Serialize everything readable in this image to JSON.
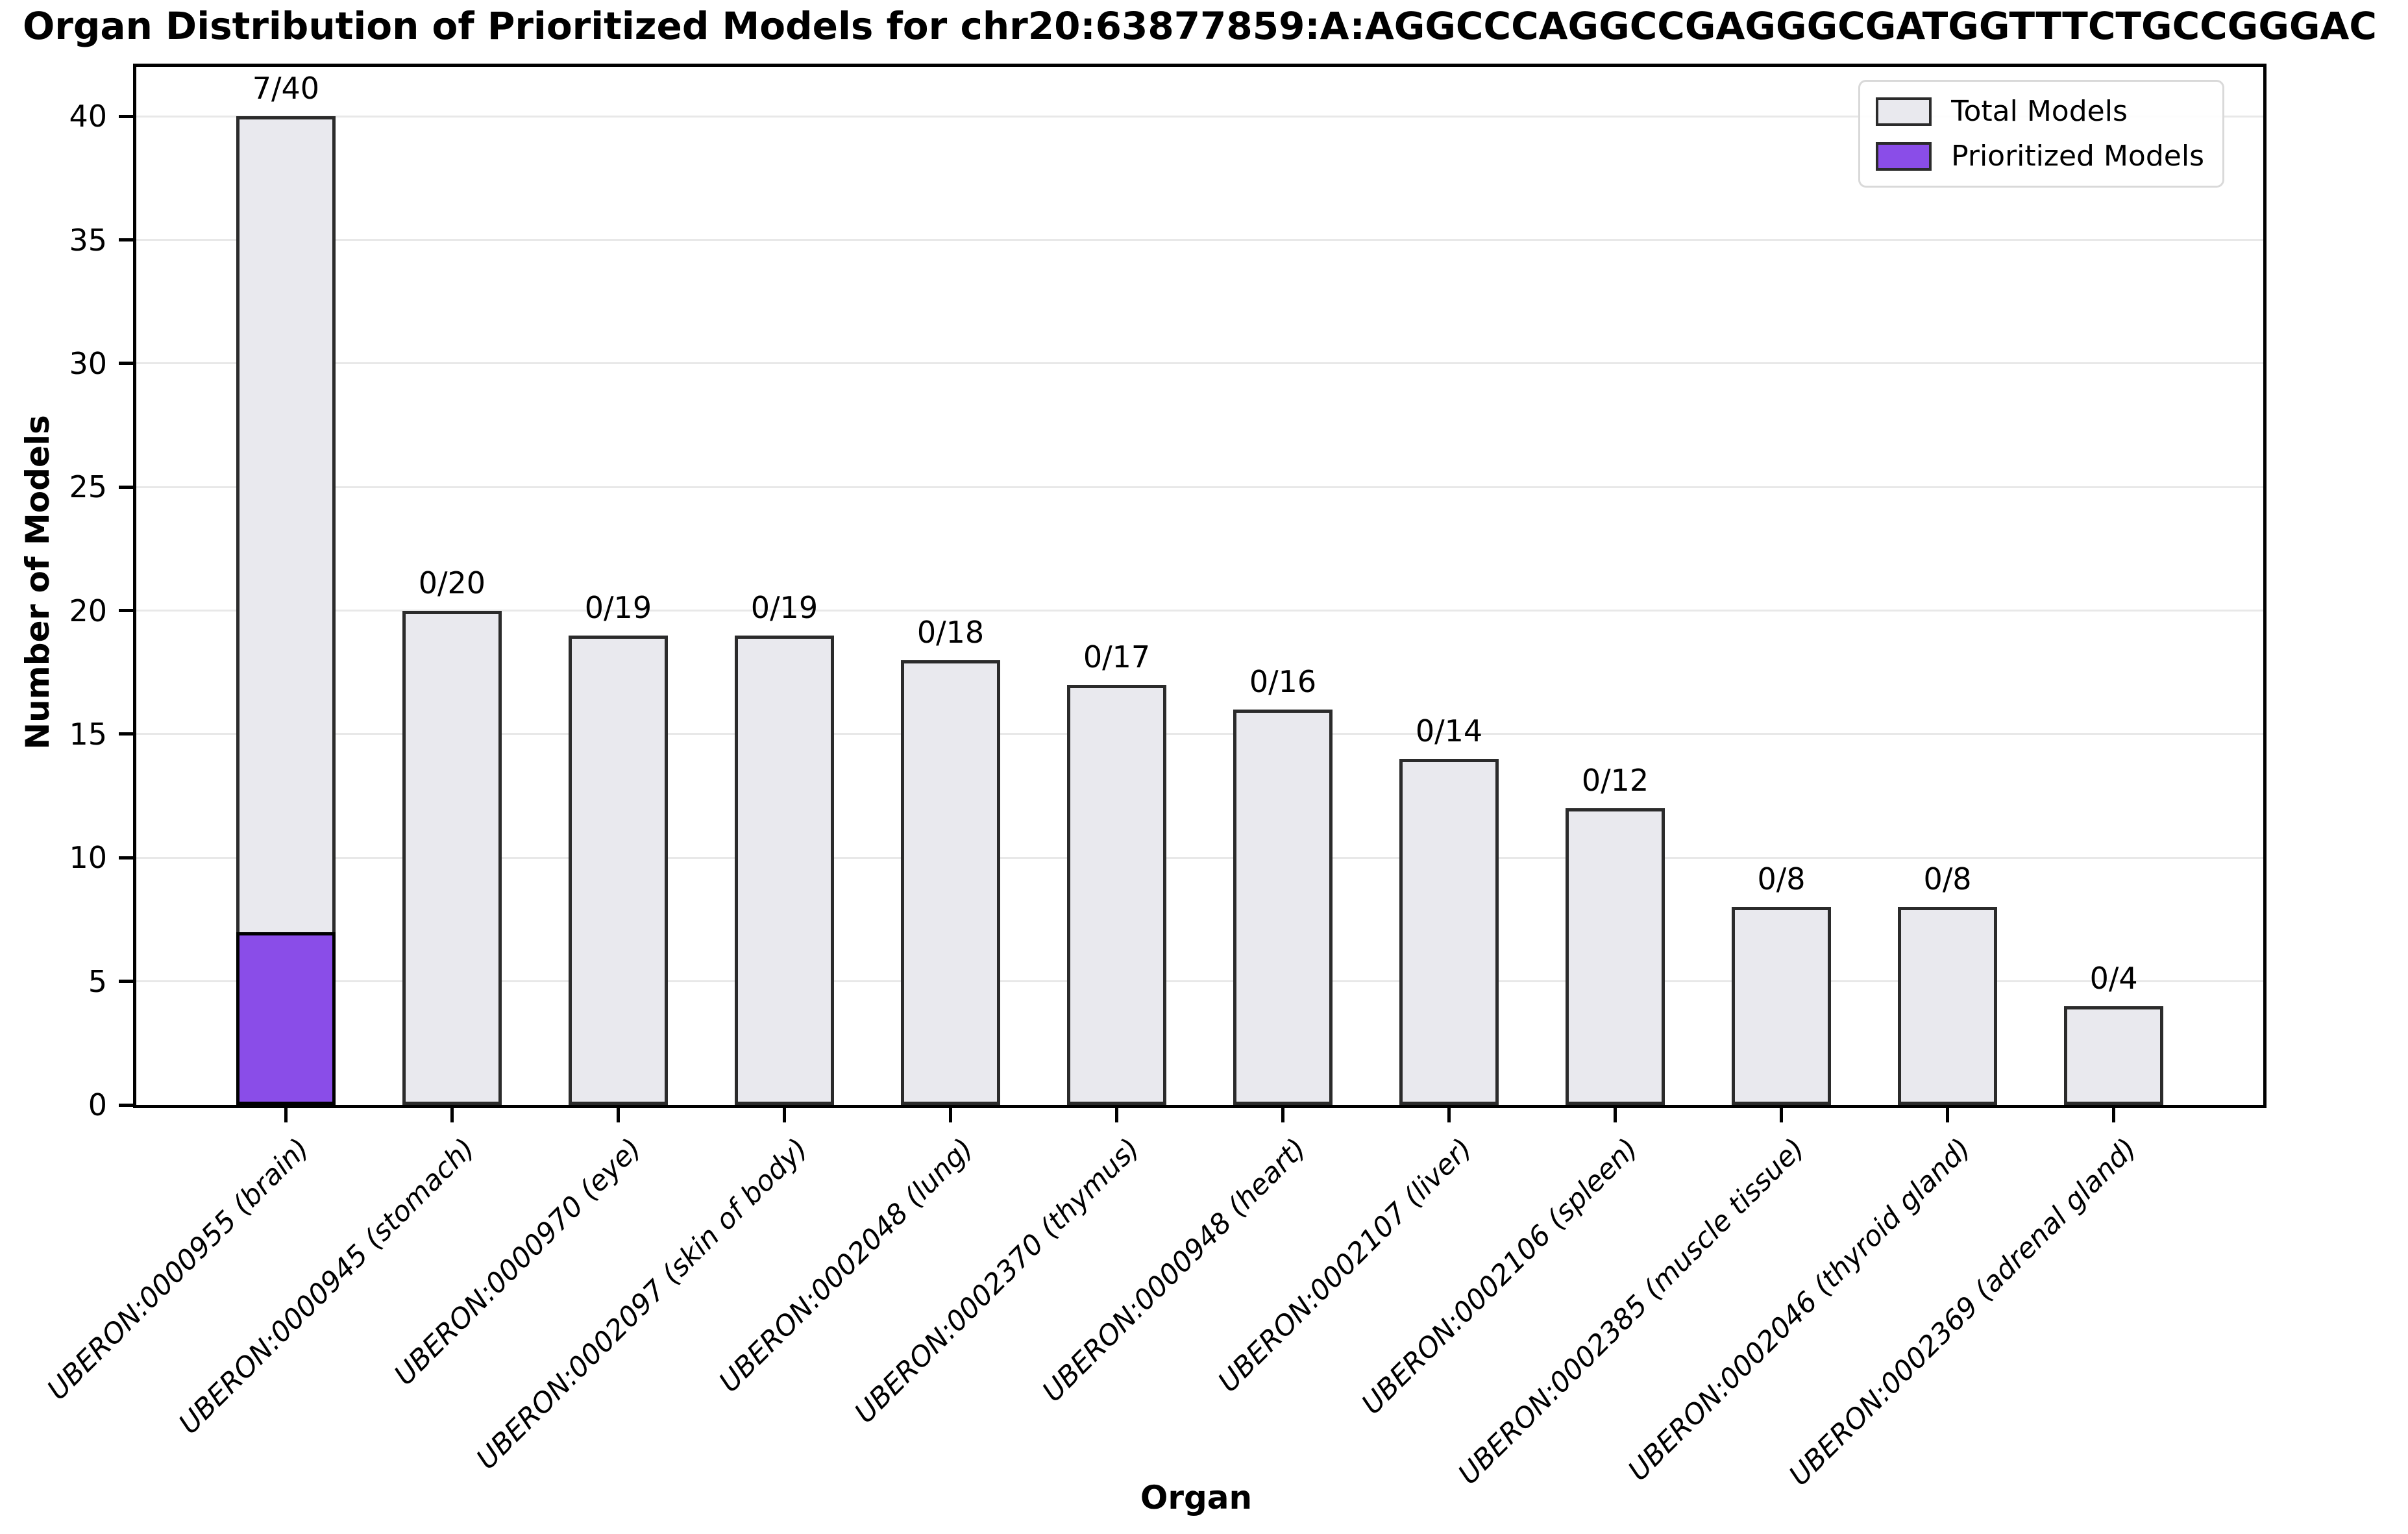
{
  "chart_data": {
    "type": "bar",
    "title": "Organ Distribution of Prioritized Models for chr20:63877859:A:AGGCCCAGGCCGAGGGCGATGGTTTCTGCCGGGAC",
    "xlabel": "Organ",
    "ylabel": "Number of Models",
    "ylim": [
      0,
      42
    ],
    "yticks": [
      0,
      5,
      10,
      15,
      20,
      25,
      30,
      35,
      40
    ],
    "grid": "horizontal-major-only",
    "legend_position": "upper right",
    "categories": [
      "UBERON:0000955 (brain)",
      "UBERON:0000945 (stomach)",
      "UBERON:0000970 (eye)",
      "UBERON:0002097 (skin of body)",
      "UBERON:0002048 (lung)",
      "UBERON:0002370 (thymus)",
      "UBERON:0000948 (heart)",
      "UBERON:0002107 (liver)",
      "UBERON:0002106 (spleen)",
      "UBERON:0002385 (muscle tissue)",
      "UBERON:0002046 (thyroid gland)",
      "UBERON:0002369 (adrenal gland)"
    ],
    "series": [
      {
        "name": "Total Models",
        "values": [
          40,
          20,
          19,
          19,
          18,
          17,
          16,
          14,
          12,
          8,
          8,
          4
        ]
      },
      {
        "name": "Prioritized Models",
        "values": [
          7,
          0,
          0,
          0,
          0,
          0,
          0,
          0,
          0,
          0,
          0,
          0
        ]
      }
    ],
    "bar_annotations": [
      "7/40",
      "0/20",
      "0/19",
      "0/19",
      "0/18",
      "0/17",
      "0/16",
      "0/14",
      "0/12",
      "0/8",
      "0/8",
      "0/4"
    ]
  },
  "colors": {
    "total_fill": "#e9e9ee",
    "prioritized_fill": "#8a4de8",
    "bar_edge": "#2b2b2b",
    "grid": "#e8e8e8",
    "spine": "#000000",
    "legend_border": "#d9d9d9"
  }
}
